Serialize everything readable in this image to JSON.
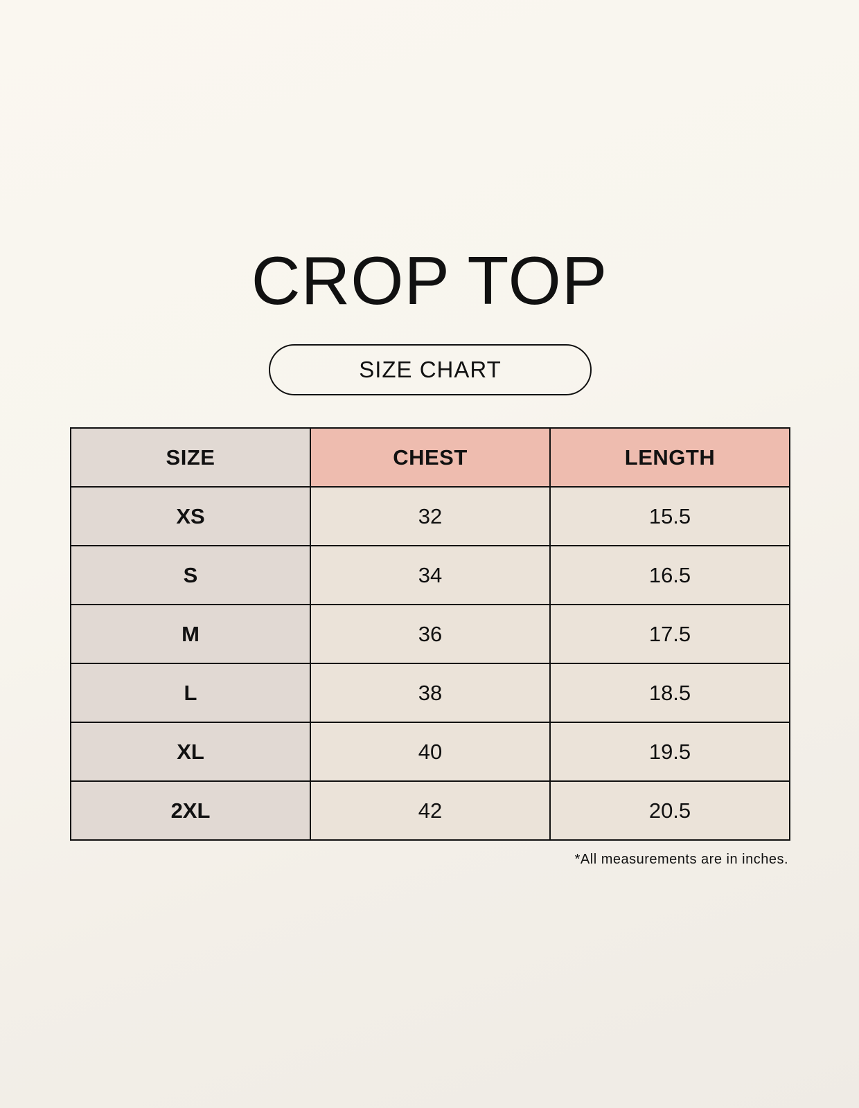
{
  "title": "CROP TOP",
  "subtitle": "SIZE CHART",
  "table": {
    "headers": [
      "SIZE",
      "CHEST",
      "LENGTH"
    ],
    "rows": [
      [
        "XS",
        "32",
        "15.5"
      ],
      [
        "S",
        "34",
        "16.5"
      ],
      [
        "M",
        "36",
        "17.5"
      ],
      [
        "L",
        "38",
        "18.5"
      ],
      [
        "XL",
        "40",
        "19.5"
      ],
      [
        "2XL",
        "42",
        "20.5"
      ]
    ]
  },
  "footnote": "*All measurements are in inches.",
  "colors": {
    "size_column": "#e1d9d3",
    "header_accent": "#eebcaf",
    "cell": "#ebe3d9"
  }
}
